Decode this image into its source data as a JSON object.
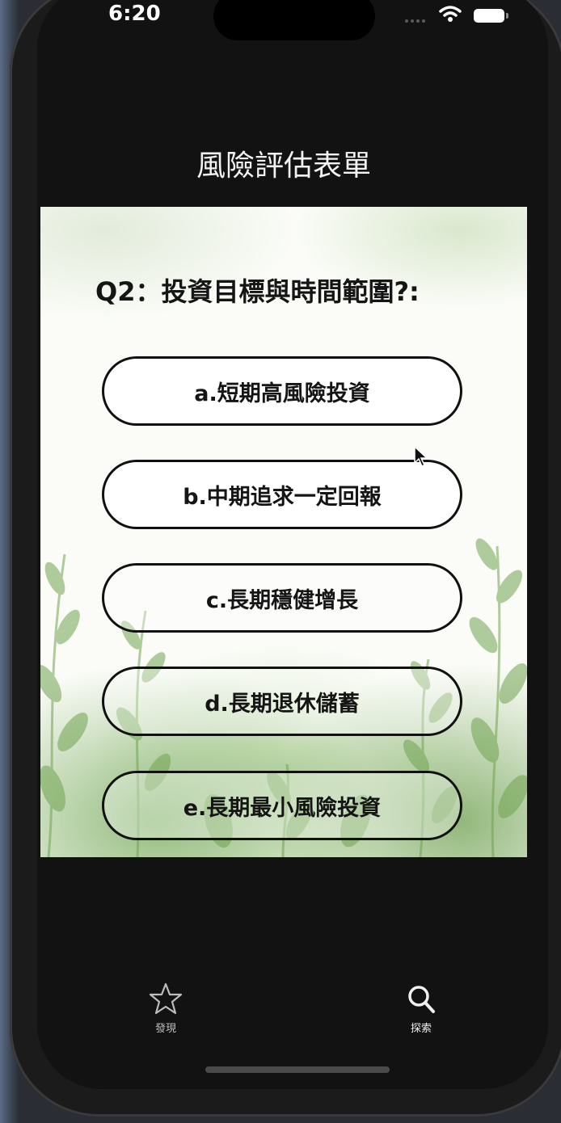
{
  "status_bar": {
    "time": "6:20"
  },
  "nav": {
    "title": "風險評估表單"
  },
  "quiz": {
    "question": "Q2：投資目標與時間範圍?:",
    "options": [
      "a.短期高風險投資",
      "b.中期追求一定回報",
      "c.長期穩健增長",
      "d.長期退休儲蓄",
      "e.長期最小風險投資"
    ]
  },
  "tabbar": {
    "tabs": [
      {
        "label": "發現",
        "icon": "star-icon"
      },
      {
        "label": "探索",
        "icon": "search-icon"
      }
    ]
  },
  "colors": {
    "background": "#121212",
    "accent_green": "#74a858",
    "text": "#151515"
  }
}
